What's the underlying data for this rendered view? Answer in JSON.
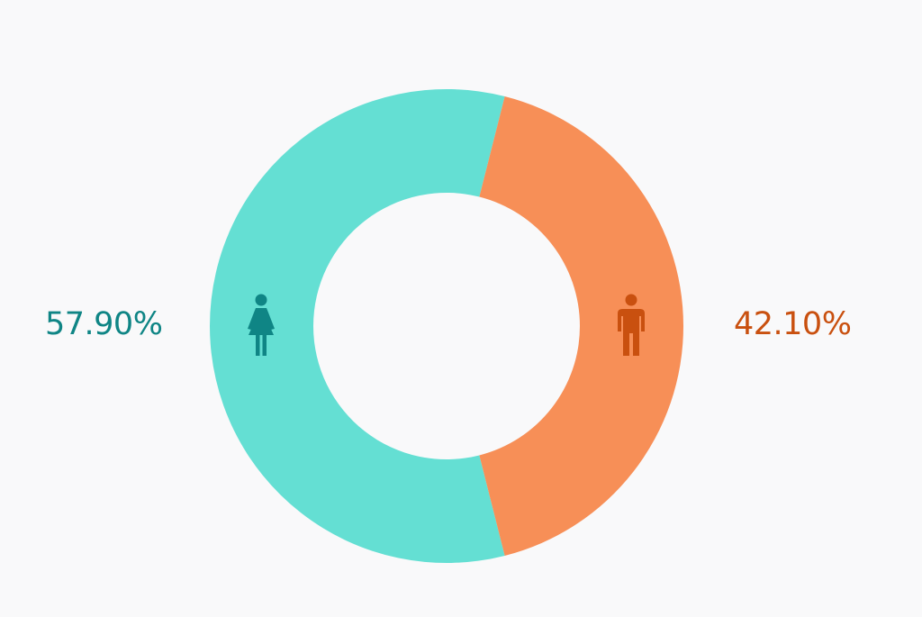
{
  "chart_data": {
    "type": "pie",
    "donut": true,
    "categories": [
      "female",
      "male"
    ],
    "values": [
      57.9,
      42.1
    ],
    "data_labels": [
      "57.90%",
      "42.10%"
    ],
    "icons": [
      "female-person-icon",
      "male-person-icon"
    ],
    "colors": {
      "female_slice": "#64dfd3",
      "male_slice": "#f78f57",
      "female_text": "#0f8585",
      "male_text": "#c9500f",
      "background": "#f9f9fa"
    }
  }
}
